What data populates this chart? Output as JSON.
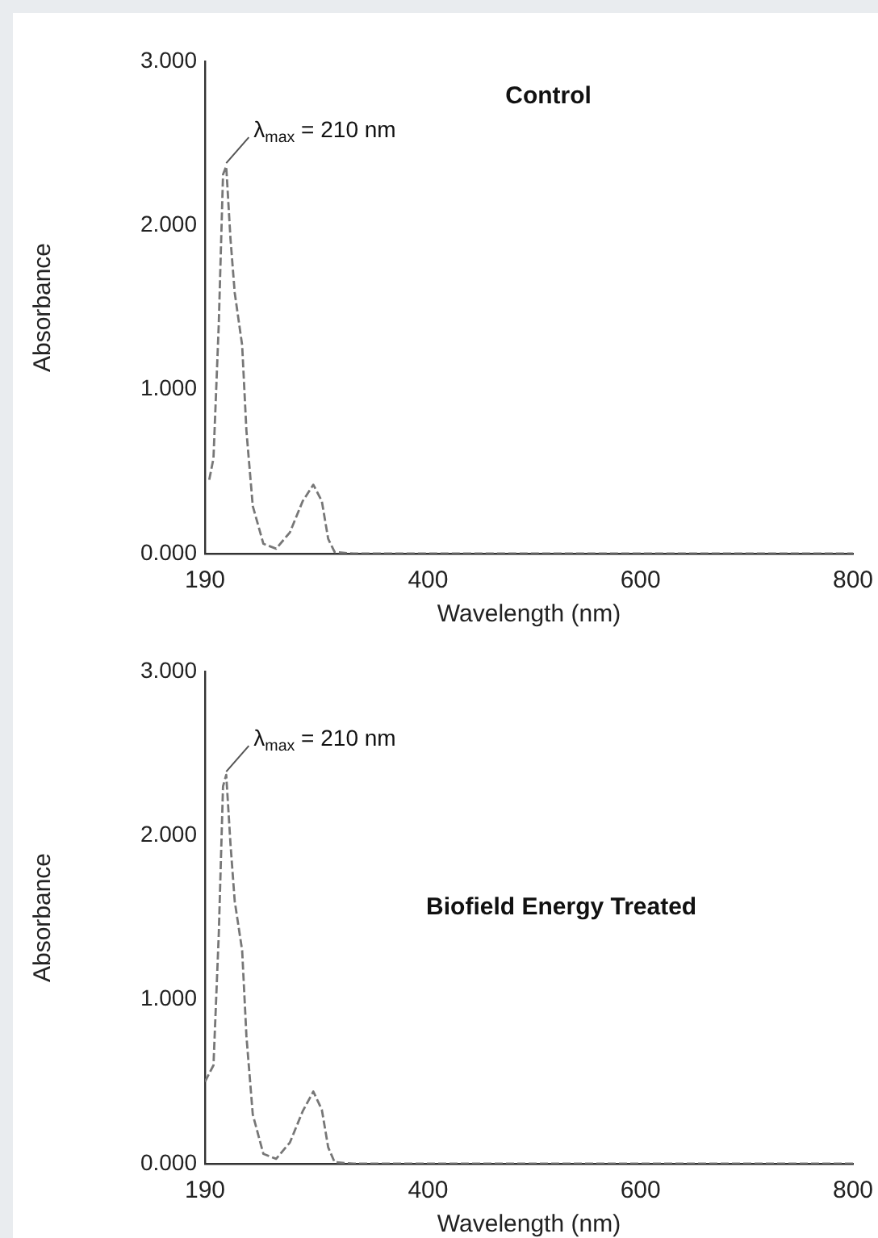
{
  "chart_data": [
    {
      "type": "line",
      "title": "Control",
      "xlabel": "Wavelength (nm)",
      "ylabel": "Absorbance",
      "xlim": [
        190,
        800
      ],
      "xticks": [
        190,
        400,
        600,
        800
      ],
      "ylim": [
        0,
        3
      ],
      "yticks": [
        {
          "value": 0,
          "label": "0.000"
        },
        {
          "value": 1,
          "label": "1.000"
        },
        {
          "value": 2,
          "label": "2.000"
        },
        {
          "value": 3,
          "label": "3.000"
        }
      ],
      "grid": false,
      "legend": false,
      "marker": "none",
      "line_style": "dashed",
      "annotations": [
        {
          "text": "λ$_{max}$ = 210 nm",
          "x": 210,
          "y": 2.36
        }
      ],
      "series": [
        {
          "color": "#777777",
          "x": [
            194,
            198,
            203,
            207,
            210,
            214,
            218,
            225,
            229,
            235,
            245,
            257,
            270,
            282,
            292,
            300,
            306,
            312,
            330,
            400,
            500,
            600,
            700,
            800
          ],
          "values": [
            0.45,
            0.58,
            1.4,
            2.31,
            2.36,
            1.92,
            1.59,
            1.27,
            0.75,
            0.29,
            0.06,
            0.03,
            0.13,
            0.32,
            0.42,
            0.32,
            0.09,
            0.01,
            0,
            0,
            0,
            0,
            0,
            0
          ]
        }
      ]
    },
    {
      "type": "line",
      "title": "Biofield Energy Treated",
      "xlabel": "Wavelength (nm)",
      "ylabel": "Absorbance",
      "xlim": [
        190,
        800
      ],
      "xticks": [
        190,
        400,
        600,
        800
      ],
      "ylim": [
        0,
        3
      ],
      "yticks": [
        {
          "value": 0,
          "label": "0.000"
        },
        {
          "value": 1,
          "label": "1.000"
        },
        {
          "value": 2,
          "label": "2.000"
        },
        {
          "value": 3,
          "label": "3.000"
        }
      ],
      "grid": false,
      "legend": false,
      "marker": "none",
      "line_style": "dashed",
      "annotations": [
        {
          "text": "λ$_{max}$ = 210 nm",
          "x": 210,
          "y": 2.37
        }
      ],
      "series": [
        {
          "color": "#777777",
          "x": [
            190,
            198,
            203,
            207,
            210,
            214,
            218,
            225,
            229,
            235,
            245,
            257,
            270,
            282,
            292,
            300,
            306,
            312,
            330,
            400,
            500,
            600,
            700,
            800
          ],
          "values": [
            0.5,
            0.6,
            1.4,
            2.3,
            2.37,
            1.95,
            1.6,
            1.3,
            0.78,
            0.3,
            0.06,
            0.03,
            0.13,
            0.32,
            0.44,
            0.33,
            0.1,
            0.01,
            0,
            0,
            0,
            0,
            0,
            0
          ]
        }
      ]
    }
  ]
}
